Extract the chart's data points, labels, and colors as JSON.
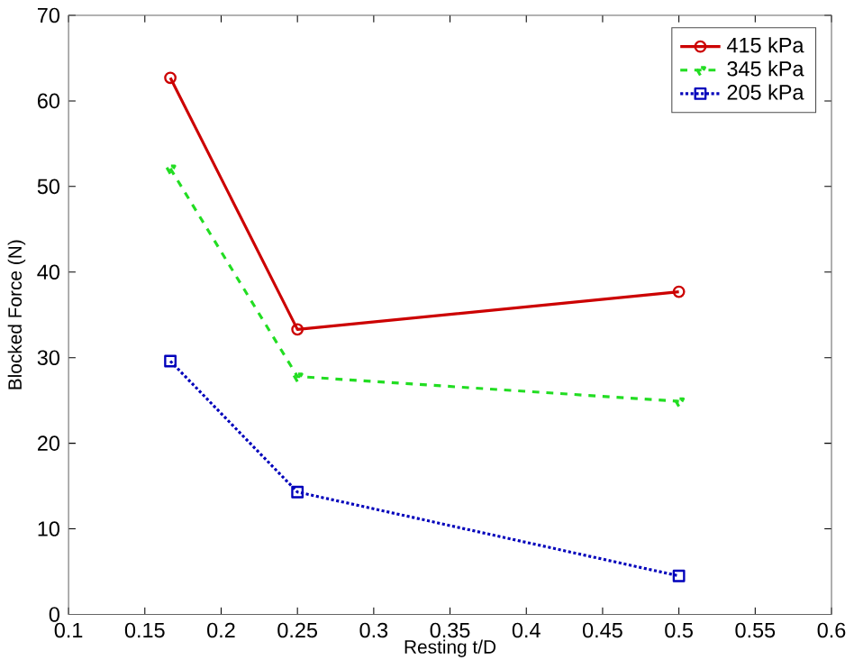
{
  "chart_data": {
    "type": "line",
    "xlabel": "Resting t/D",
    "ylabel": "Blocked Force (N)",
    "x": [
      0.1667,
      0.25,
      0.5
    ],
    "series": [
      {
        "name": "415 kPa",
        "color": "#cc0000",
        "values": [
          62.7,
          33.3,
          37.7
        ],
        "marker": "circle",
        "line_style": "solid"
      },
      {
        "name": "345 kPa",
        "color": "#22dd22",
        "values": [
          52.1,
          27.8,
          24.9
        ],
        "marker": "triangle",
        "line_style": "dashed"
      },
      {
        "name": "205 kPa",
        "color": "#0000bb",
        "values": [
          29.6,
          14.3,
          4.5
        ],
        "marker": "square",
        "line_style": "dotted"
      }
    ],
    "xlim": [
      0.1,
      0.6
    ],
    "xticks": [
      0.1,
      0.15,
      0.2,
      0.25,
      0.3,
      0.35,
      0.4,
      0.45,
      0.5,
      0.55,
      0.6
    ],
    "ylim": [
      0,
      70
    ],
    "yticks": [
      0,
      10,
      20,
      30,
      40,
      50,
      60,
      70
    ],
    "grid": false,
    "legend": "top right"
  }
}
